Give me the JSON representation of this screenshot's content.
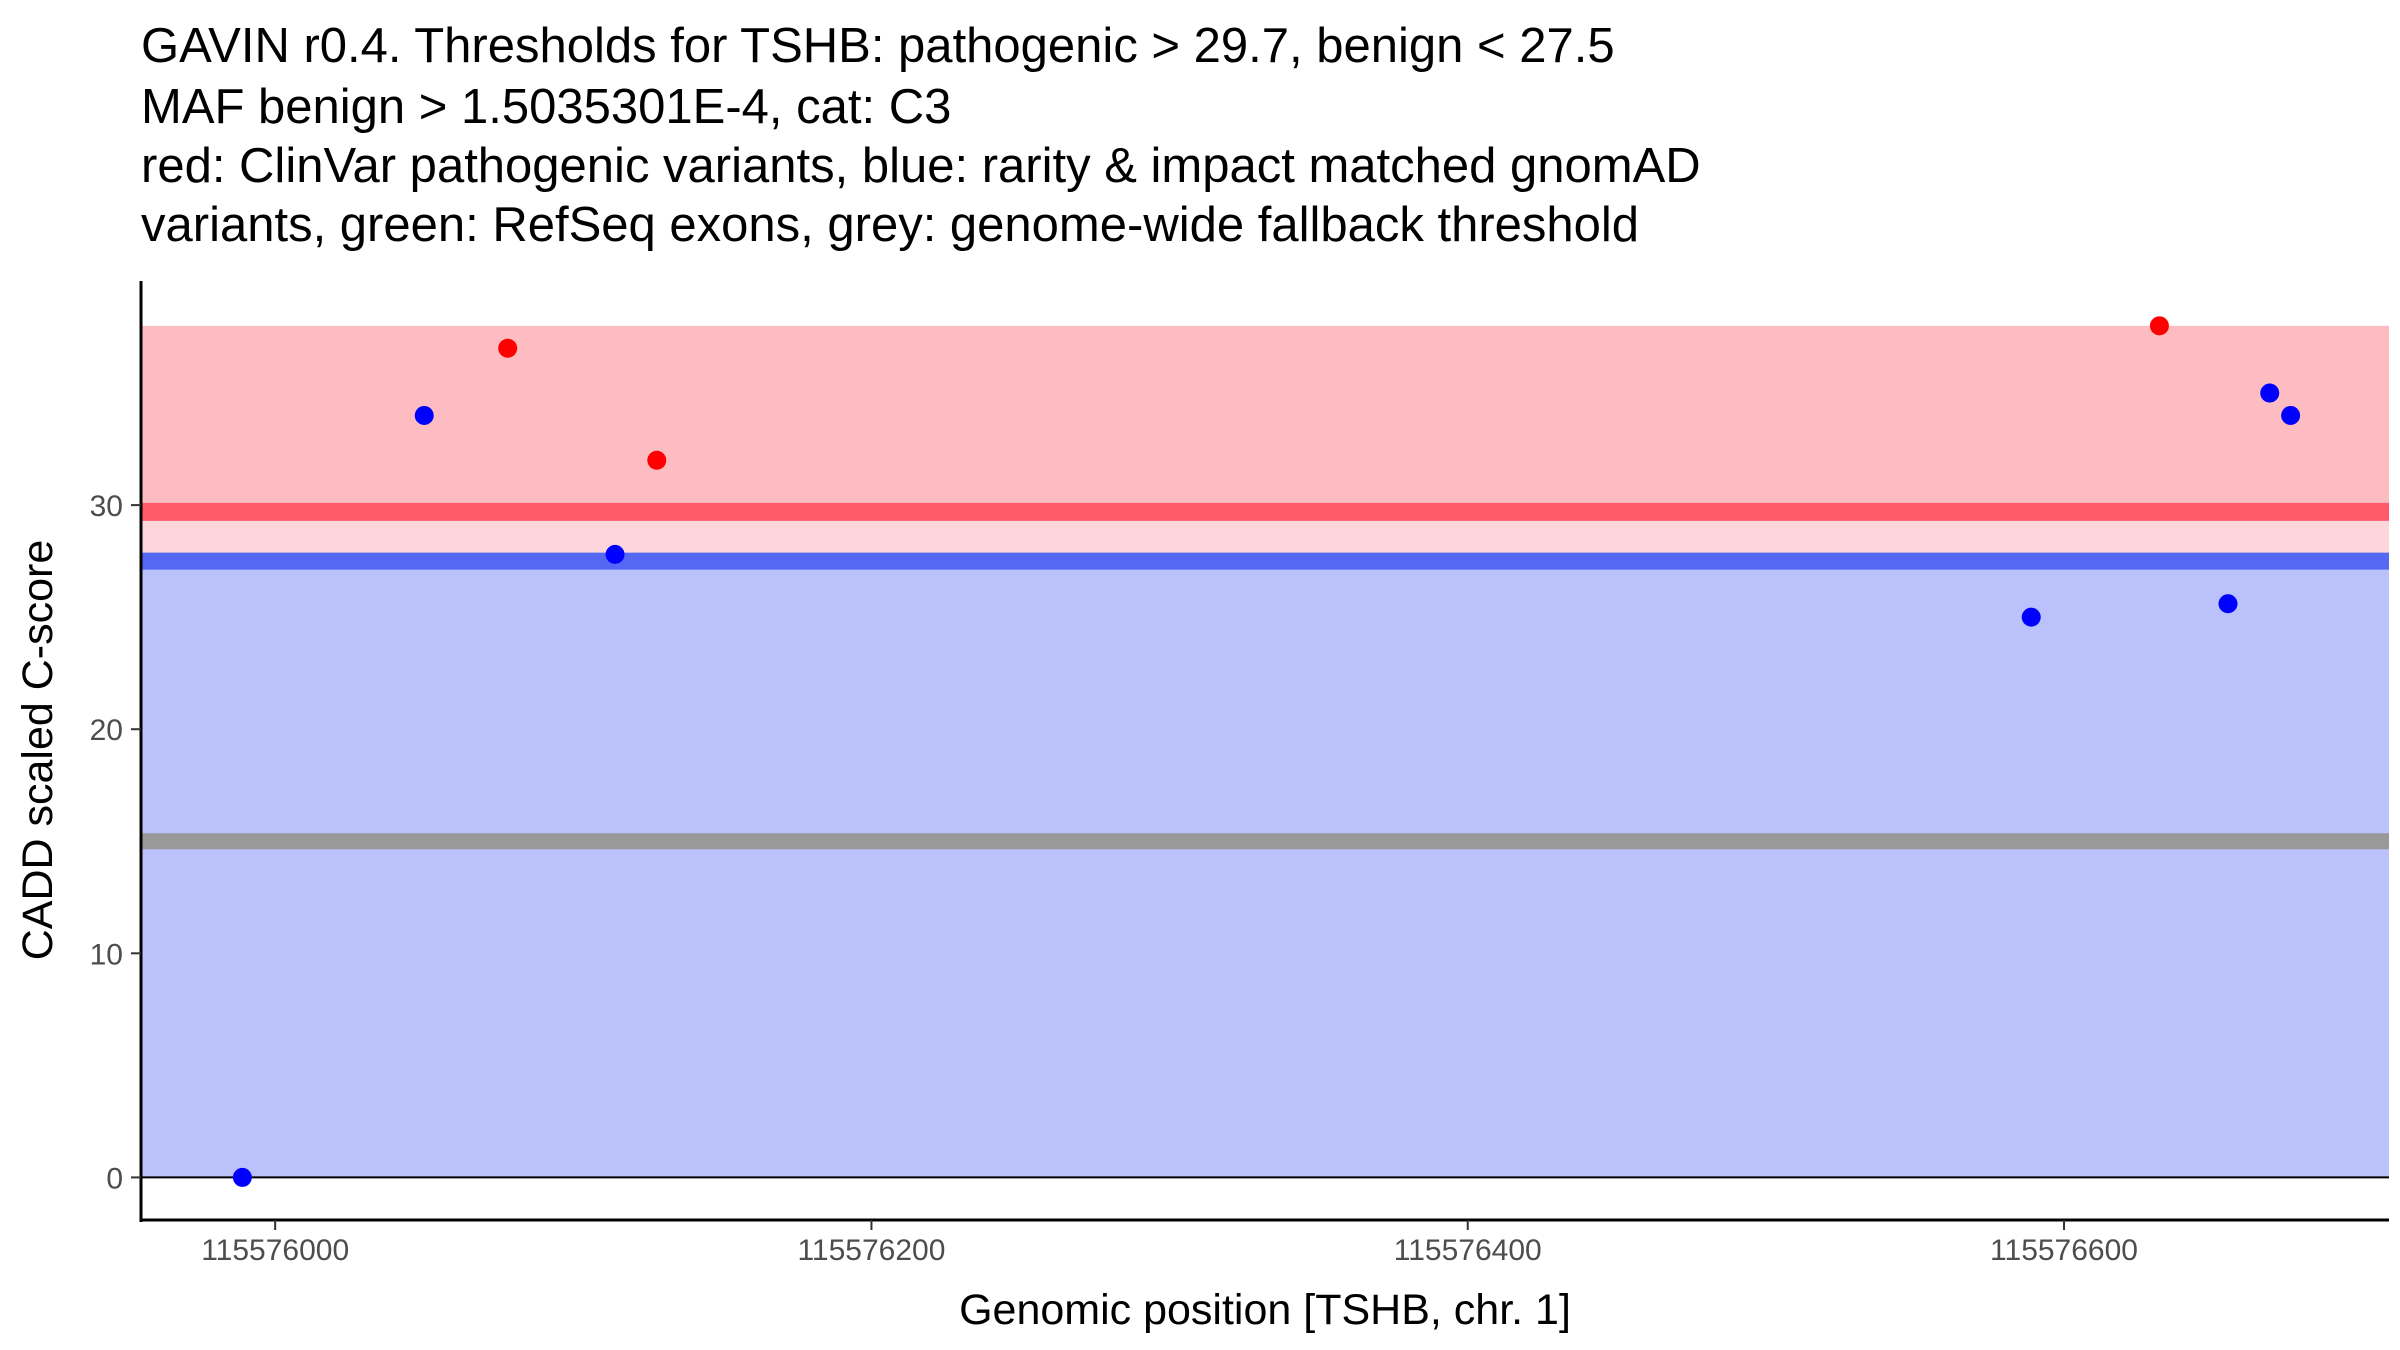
{
  "chart_data": {
    "type": "scatter",
    "title_lines": [
      "GAVIN r0.4. Thresholds for TSHB: pathogenic > 29.7, benign < 27.5",
      "MAF benign > 1.5035301E-4, cat: C3",
      "red: ClinVar pathogenic variants, blue: rarity & impact matched gnomAD",
      "variants, green: RefSeq exons, grey: genome-wide fallback threshold"
    ],
    "xlabel": "Genomic position [TSHB, chr. 1]",
    "ylabel": "CADD scaled C-score",
    "xlim": [
      115575955,
      115576709
    ],
    "ylim": [
      -1.9,
      40
    ],
    "x_ticks": [
      115576000,
      115576200,
      115576400,
      115576600
    ],
    "x_tick_labels": [
      "115576000",
      "115576200",
      "115576400",
      "115576600"
    ],
    "y_ticks": [
      0,
      10,
      20,
      30
    ],
    "y_tick_labels": [
      "0",
      "10",
      "20",
      "30"
    ],
    "grid": false,
    "thresholds": {
      "pathogenic": 29.7,
      "benign": 27.5,
      "fallback": 15,
      "pathogenic_region_top": 38,
      "benign_region_bottom": 0
    },
    "colors": {
      "pathogenic_fill": "#FDBCC1",
      "between_fill": "#FDD6DB",
      "benign_fill": "#BBC1FA",
      "pathogenic_line": "#FF5A68",
      "benign_line": "#5468F3",
      "fallback_line": "#999999",
      "pathogenic_point": "#FF0000",
      "benign_point": "#0000FF"
    },
    "series": [
      {
        "name": "ClinVar pathogenic variants",
        "color": "#FF0000",
        "points": [
          {
            "x": 115576078,
            "y": 37
          },
          {
            "x": 115576128,
            "y": 32
          },
          {
            "x": 115576632,
            "y": 38
          }
        ]
      },
      {
        "name": "rarity & impact matched gnomAD variants",
        "color": "#0000FF",
        "points": [
          {
            "x": 115575989,
            "y": 0
          },
          {
            "x": 115576050,
            "y": 34
          },
          {
            "x": 115576114,
            "y": 27.8
          },
          {
            "x": 115576589,
            "y": 25
          },
          {
            "x": 115576655,
            "y": 25.6
          },
          {
            "x": 115576669,
            "y": 35
          },
          {
            "x": 115576676,
            "y": 34
          }
        ]
      }
    ]
  }
}
